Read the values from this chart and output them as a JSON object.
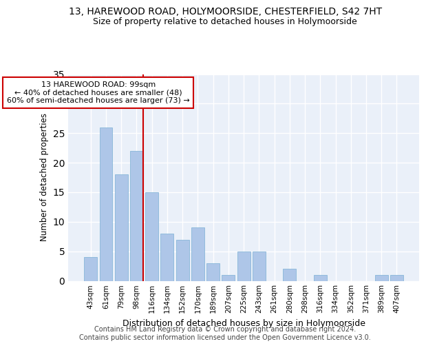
{
  "title1": "13, HAREWOOD ROAD, HOLYMOORSIDE, CHESTERFIELD, S42 7HT",
  "title2": "Size of property relative to detached houses in Holymoorside",
  "xlabel": "Distribution of detached houses by size in Holymoorside",
  "ylabel": "Number of detached properties",
  "categories": [
    "43sqm",
    "61sqm",
    "79sqm",
    "98sqm",
    "116sqm",
    "134sqm",
    "152sqm",
    "170sqm",
    "189sqm",
    "207sqm",
    "225sqm",
    "243sqm",
    "261sqm",
    "280sqm",
    "298sqm",
    "316sqm",
    "334sqm",
    "352sqm",
    "371sqm",
    "389sqm",
    "407sqm"
  ],
  "values": [
    4,
    26,
    18,
    22,
    15,
    8,
    7,
    9,
    3,
    1,
    5,
    5,
    0,
    2,
    0,
    1,
    0,
    0,
    0,
    1,
    1
  ],
  "bar_color": "#aec6e8",
  "bar_edgecolor": "#7aafd4",
  "vline_index": 3,
  "vline_color": "#cc0000",
  "annotation_text": "13 HAREWOOD ROAD: 99sqm\n← 40% of detached houses are smaller (48)\n60% of semi-detached houses are larger (73) →",
  "ylim": [
    0,
    35
  ],
  "yticks": [
    0,
    5,
    10,
    15,
    20,
    25,
    30,
    35
  ],
  "background_color": "#eaf0f9",
  "grid_color": "#ffffff",
  "footer": "Contains HM Land Registry data © Crown copyright and database right 2024.\nContains public sector information licensed under the Open Government Licence v3.0.",
  "title1_fontsize": 10,
  "title2_fontsize": 9,
  "xlabel_fontsize": 9,
  "ylabel_fontsize": 8.5,
  "tick_fontsize": 7.5,
  "annotation_fontsize": 8,
  "footer_fontsize": 7
}
